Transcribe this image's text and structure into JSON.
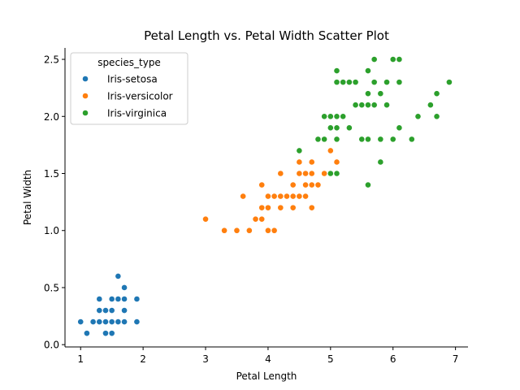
{
  "chart_data": {
    "type": "scatter",
    "title": "Petal Length vs. Petal Width Scatter Plot",
    "xlabel": "Petal Length",
    "ylabel": "Petal Width",
    "xlim": [
      0.75,
      7.2
    ],
    "ylim": [
      -0.02,
      2.6
    ],
    "xticks": [
      1,
      2,
      3,
      4,
      5,
      6,
      7
    ],
    "xtick_labels": [
      "1",
      "2",
      "3",
      "4",
      "5",
      "6",
      "7"
    ],
    "yticks": [
      0.0,
      0.5,
      1.0,
      1.5,
      2.0,
      2.5
    ],
    "ytick_labels": [
      "0.0",
      "0.5",
      "1.0",
      "1.5",
      "2.0",
      "2.5"
    ],
    "grid": false,
    "legend": {
      "title": "species_type",
      "placement": "top-left"
    },
    "series": [
      {
        "name": "Iris-setosa",
        "color": "#1f77b4",
        "points": [
          [
            1.0,
            0.2
          ],
          [
            1.1,
            0.1
          ],
          [
            1.2,
            0.2
          ],
          [
            1.3,
            0.2
          ],
          [
            1.3,
            0.3
          ],
          [
            1.3,
            0.4
          ],
          [
            1.4,
            0.1
          ],
          [
            1.4,
            0.2
          ],
          [
            1.4,
            0.3
          ],
          [
            1.5,
            0.1
          ],
          [
            1.5,
            0.2
          ],
          [
            1.5,
            0.3
          ],
          [
            1.5,
            0.4
          ],
          [
            1.6,
            0.2
          ],
          [
            1.6,
            0.4
          ],
          [
            1.6,
            0.6
          ],
          [
            1.7,
            0.2
          ],
          [
            1.7,
            0.3
          ],
          [
            1.7,
            0.4
          ],
          [
            1.7,
            0.5
          ],
          [
            1.9,
            0.2
          ],
          [
            1.9,
            0.4
          ]
        ]
      },
      {
        "name": "Iris-versicolor",
        "color": "#ff7f0e",
        "points": [
          [
            3.0,
            1.1
          ],
          [
            3.3,
            1.0
          ],
          [
            3.5,
            1.0
          ],
          [
            3.6,
            1.3
          ],
          [
            3.7,
            1.0
          ],
          [
            3.8,
            1.1
          ],
          [
            3.9,
            1.1
          ],
          [
            3.9,
            1.2
          ],
          [
            3.9,
            1.4
          ],
          [
            4.0,
            1.0
          ],
          [
            4.0,
            1.2
          ],
          [
            4.0,
            1.3
          ],
          [
            4.1,
            1.0
          ],
          [
            4.1,
            1.3
          ],
          [
            4.2,
            1.2
          ],
          [
            4.2,
            1.3
          ],
          [
            4.2,
            1.5
          ],
          [
            4.3,
            1.3
          ],
          [
            4.4,
            1.2
          ],
          [
            4.4,
            1.3
          ],
          [
            4.4,
            1.4
          ],
          [
            4.5,
            1.3
          ],
          [
            4.5,
            1.5
          ],
          [
            4.5,
            1.6
          ],
          [
            4.6,
            1.3
          ],
          [
            4.6,
            1.4
          ],
          [
            4.6,
            1.5
          ],
          [
            4.7,
            1.2
          ],
          [
            4.7,
            1.4
          ],
          [
            4.7,
            1.5
          ],
          [
            4.7,
            1.6
          ],
          [
            4.8,
            1.4
          ],
          [
            4.9,
            1.5
          ],
          [
            5.0,
            1.7
          ],
          [
            5.1,
            1.6
          ]
        ]
      },
      {
        "name": "Iris-virginica",
        "color": "#2ca02c",
        "points": [
          [
            4.5,
            1.7
          ],
          [
            4.8,
            1.8
          ],
          [
            4.9,
            1.8
          ],
          [
            4.9,
            2.0
          ],
          [
            5.0,
            1.5
          ],
          [
            5.0,
            1.9
          ],
          [
            5.0,
            2.0
          ],
          [
            5.1,
            1.5
          ],
          [
            5.1,
            1.8
          ],
          [
            5.1,
            1.9
          ],
          [
            5.1,
            2.0
          ],
          [
            5.1,
            2.3
          ],
          [
            5.1,
            2.4
          ],
          [
            5.2,
            2.0
          ],
          [
            5.2,
            2.3
          ],
          [
            5.3,
            1.9
          ],
          [
            5.3,
            2.3
          ],
          [
            5.4,
            2.1
          ],
          [
            5.4,
            2.3
          ],
          [
            5.5,
            1.8
          ],
          [
            5.5,
            2.1
          ],
          [
            5.6,
            1.4
          ],
          [
            5.6,
            1.8
          ],
          [
            5.6,
            2.1
          ],
          [
            5.6,
            2.2
          ],
          [
            5.6,
            2.4
          ],
          [
            5.7,
            2.1
          ],
          [
            5.7,
            2.3
          ],
          [
            5.7,
            2.5
          ],
          [
            5.8,
            1.6
          ],
          [
            5.8,
            1.8
          ],
          [
            5.8,
            2.2
          ],
          [
            5.9,
            2.1
          ],
          [
            5.9,
            2.3
          ],
          [
            6.0,
            1.8
          ],
          [
            6.0,
            2.5
          ],
          [
            6.1,
            1.9
          ],
          [
            6.1,
            2.3
          ],
          [
            6.1,
            2.5
          ],
          [
            6.3,
            1.8
          ],
          [
            6.4,
            2.0
          ],
          [
            6.6,
            2.1
          ],
          [
            6.7,
            2.0
          ],
          [
            6.7,
            2.2
          ],
          [
            6.9,
            2.3
          ]
        ]
      }
    ]
  }
}
